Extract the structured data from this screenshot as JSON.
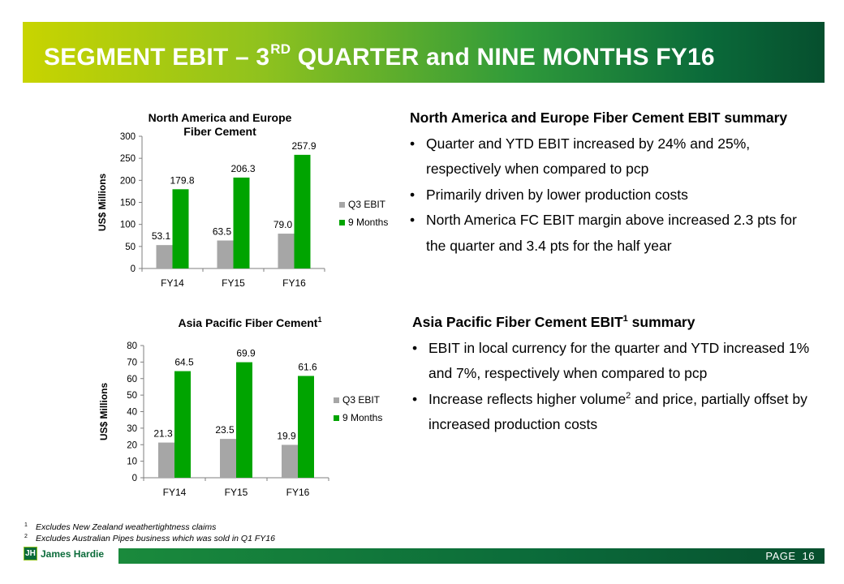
{
  "header": {
    "title_pre": "SEGMENT EBIT – 3",
    "title_sup": "RD",
    "title_post": " QUARTER and NINE MONTHS FY16"
  },
  "chart_data": [
    {
      "type": "bar",
      "title": "North America and Europe Fiber Cement",
      "ylabel": "US$ Millions",
      "categories": [
        "FY14",
        "FY15",
        "FY16"
      ],
      "series": [
        {
          "name": "Q3 EBIT",
          "values": [
            53.1,
            63.5,
            79.0
          ],
          "labels": [
            "53.1",
            "63.5",
            "79.0"
          ],
          "color": "#a6a6a6"
        },
        {
          "name": "9 Months",
          "values": [
            179.8,
            206.3,
            257.9
          ],
          "labels": [
            "179.8",
            "206.3",
            "257.9"
          ],
          "color": "#00a400"
        }
      ],
      "ylim": [
        0,
        300
      ],
      "yticks": [
        0,
        50,
        100,
        150,
        200,
        250,
        300
      ],
      "grid": false,
      "legend": "right"
    },
    {
      "type": "bar",
      "title": "Asia Pacific Fiber Cement",
      "title_sup": "1",
      "ylabel": "US$ Millions",
      "categories": [
        "FY14",
        "FY15",
        "FY16"
      ],
      "series": [
        {
          "name": "Q3 EBIT",
          "values": [
            21.3,
            23.5,
            19.9
          ],
          "labels": [
            "21.3",
            "23.5",
            "19.9"
          ],
          "color": "#a6a6a6"
        },
        {
          "name": "9 Months",
          "values": [
            64.5,
            69.9,
            61.6
          ],
          "labels": [
            "64.5",
            "69.9",
            "61.6"
          ],
          "color": "#00a400"
        }
      ],
      "ylim": [
        0,
        80
      ],
      "yticks": [
        0,
        10,
        20,
        30,
        40,
        50,
        60,
        70,
        80
      ],
      "grid": false,
      "legend": "right"
    }
  ],
  "summary_na": {
    "heading": "North America and Europe Fiber Cement EBIT summary",
    "bullets": [
      "Quarter and YTD EBIT increased by 24% and 25%, respectively when compared to pcp",
      "Primarily driven by lower production costs",
      "North America FC EBIT margin above increased 2.3 pts for the quarter and 3.4 pts for the half year"
    ]
  },
  "summary_ap": {
    "heading_pre": "Asia Pacific Fiber Cement EBIT",
    "heading_sup": "1",
    "heading_post": " summary",
    "bullet1": "EBIT in local currency for the quarter and YTD increased 1% and 7%, respectively when compared to pcp",
    "bullet2_pre": "Increase reflects higher volume",
    "bullet2_sup": "2",
    "bullet2_post": " and price, partially offset by increased production costs"
  },
  "footnotes": [
    {
      "num": "1",
      "text": "Excludes New Zealand weathertightness claims"
    },
    {
      "num": "2",
      "text": "Excludes Australian Pipes business which was sold in Q1 FY16"
    }
  ],
  "footer": {
    "logo_mark": "JH",
    "logo_text": "James Hardie",
    "page_label": "PAGE",
    "page_number": "16"
  },
  "colors": {
    "q3": "#a6a6a6",
    "nine_months": "#00a400",
    "brand_green": "#0b6b3a"
  }
}
